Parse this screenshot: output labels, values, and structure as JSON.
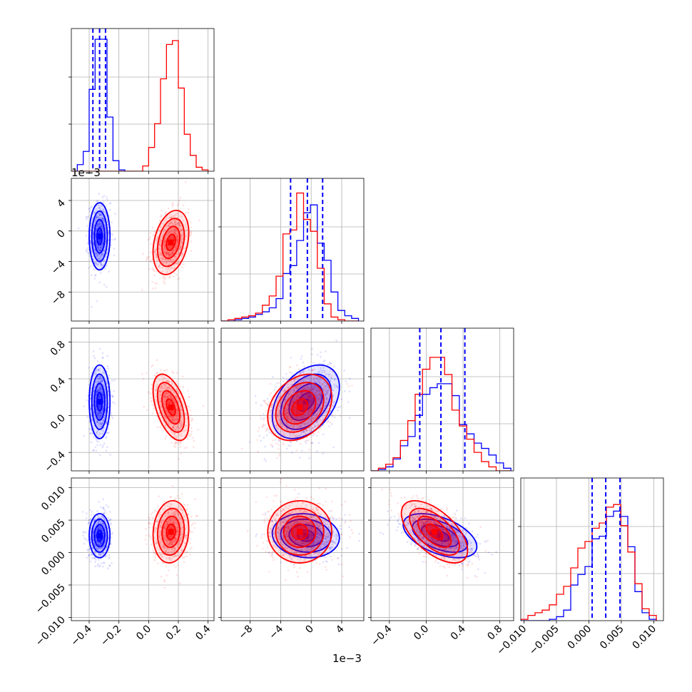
{
  "chart_data": {
    "type": "corner",
    "grid": true,
    "colors": {
      "series_a": "#0000ff",
      "series_b": "#ff0000"
    },
    "scale_labels": {
      "param2": "1e−3",
      "param2_axis": "1e−3"
    },
    "params": [
      {
        "key": "p1",
        "range": [
          -0.52,
          0.44
        ],
        "ticks": [
          -0.4,
          -0.2,
          0.0,
          0.2,
          0.4
        ],
        "tick_labels": [
          "−0.4",
          "−0.2",
          "0.0",
          "0.2",
          "0.4"
        ]
      },
      {
        "key": "p2",
        "range": [
          -0.0118,
          0.0069
        ],
        "ticks": [
          -0.008,
          -0.004,
          0.0,
          0.004
        ],
        "tick_labels": [
          "−8",
          "−4",
          "0",
          "4"
        ]
      },
      {
        "key": "p3",
        "range": [
          -0.6,
          0.95
        ],
        "ticks": [
          -0.4,
          0.0,
          0.4,
          0.8
        ],
        "tick_labels": [
          "−0.4",
          "0.0",
          "0.4",
          "0.8"
        ]
      },
      {
        "key": "p4",
        "range": [
          -0.0105,
          0.0115
        ],
        "ticks": [
          -0.01,
          -0.005,
          0.0,
          0.005,
          0.01
        ],
        "tick_labels": [
          "−0.010",
          "−0.005",
          "0.000",
          "0.005",
          "0.010"
        ]
      }
    ],
    "series": [
      {
        "key": "blue",
        "means": [
          -0.33,
          -0.0007,
          0.15,
          0.0026
        ],
        "stds": [
          0.035,
          0.0022,
          0.2,
          0.0017
        ],
        "corr": [
          [
            1,
            0,
            0,
            0
          ],
          [
            0,
            1,
            0.4,
            -0.1
          ],
          [
            0,
            0.4,
            1,
            -0.5
          ],
          [
            0,
            -0.1,
            -0.5,
            1
          ]
        ],
        "hist": [
          {
            "edges": [
              -0.52,
              -0.48,
              -0.44,
              -0.4,
              -0.36,
              -0.32,
              -0.28,
              -0.24,
              -0.2,
              -0.16
            ],
            "counts": [
              0,
              0.05,
              0.15,
              0.62,
              1.0,
              1.0,
              0.41,
              0.08,
              0.01
            ]
          },
          {
            "edges": [
              -0.0118,
              -0.0109,
              -0.01,
              -0.0091,
              -0.0082,
              -0.0073,
              -0.0064,
              -0.0055,
              -0.0046,
              -0.0037,
              -0.0028,
              -0.0019,
              -0.001,
              -0.0001,
              0.0008,
              0.0017,
              0.0026,
              0.0035,
              0.0044,
              0.0053,
              0.0062
            ],
            "counts": [
              0,
              0,
              0.01,
              0.02,
              0.03,
              0.05,
              0.07,
              0.1,
              0.17,
              0.36,
              0.42,
              0.61,
              0.82,
              0.88,
              0.59,
              0.46,
              0.22,
              0.08,
              0.04,
              0.02
            ]
          },
          {
            "edges": [
              -0.6,
              -0.52,
              -0.44,
              -0.36,
              -0.28,
              -0.2,
              -0.12,
              -0.04,
              0.04,
              0.12,
              0.2,
              0.28,
              0.36,
              0.44,
              0.52,
              0.6,
              0.68,
              0.76,
              0.84,
              0.92
            ],
            "counts": [
              0,
              0.01,
              0.03,
              0.09,
              0.19,
              0.26,
              0.42,
              0.58,
              0.63,
              0.66,
              0.66,
              0.57,
              0.35,
              0.28,
              0.21,
              0.17,
              0.12,
              0.06,
              0.02
            ]
          },
          {
            "edges": [
              -0.0105,
              -0.0094,
              -0.0083,
              -0.0072,
              -0.0061,
              -0.005,
              -0.0039,
              -0.0028,
              -0.0017,
              -0.0006,
              0.0005,
              0.0016,
              0.0027,
              0.0038,
              0.0049,
              0.006,
              0.0071,
              0.0082,
              0.0093,
              0.0104
            ],
            "counts": [
              0,
              0,
              0,
              0,
              0.01,
              0.03,
              0.08,
              0.27,
              0.35,
              0.41,
              0.62,
              0.64,
              0.79,
              0.83,
              0.79,
              0.56,
              0.22,
              0.06,
              0.01
            ]
          }
        ],
        "quantiles": [
          [
            -0.375,
            -0.33,
            -0.29
          ],
          [
            -0.0027,
            -0.0005,
            0.0015
          ],
          [
            -0.07,
            0.16,
            0.42
          ],
          [
            0.0005,
            0.0026,
            0.0048
          ]
        ]
      },
      {
        "key": "red",
        "means": [
          0.15,
          -0.0015,
          0.09,
          0.0032
        ],
        "stds": [
          0.06,
          0.0021,
          0.18,
          0.0024
        ],
        "corr": [
          [
            1,
            0.3,
            -0.5,
            0.1
          ],
          [
            0.3,
            1,
            0.3,
            0
          ],
          [
            -0.5,
            0.3,
            1,
            -0.6
          ],
          [
            0.1,
            0,
            -0.6,
            1
          ]
        ],
        "hist": [
          {
            "edges": [
              -0.52,
              -0.04,
              0.0,
              0.04,
              0.08,
              0.12,
              0.16,
              0.2,
              0.24,
              0.28,
              0.32,
              0.36,
              0.4
            ],
            "counts": [
              0,
              0.04,
              0.18,
              0.36,
              0.7,
              0.96,
              0.99,
              0.63,
              0.28,
              0.12,
              0.03,
              0.01
            ]
          },
          {
            "edges": [
              -0.0118,
              -0.0109,
              -0.01,
              -0.0091,
              -0.0082,
              -0.0073,
              -0.0064,
              -0.0055,
              -0.0046,
              -0.0037,
              -0.0028,
              -0.0019,
              -0.001,
              -0.0001,
              0.0008,
              0.0017,
              0.0026,
              0.0035,
              0.0044,
              0.0053,
              0.0062
            ],
            "counts": [
              0,
              0.01,
              0.02,
              0.03,
              0.04,
              0.06,
              0.12,
              0.19,
              0.34,
              0.66,
              0.69,
              0.97,
              0.77,
              0.68,
              0.4,
              0.13,
              0.03,
              0.01,
              0,
              0
            ]
          },
          {
            "edges": [
              -0.6,
              -0.52,
              -0.44,
              -0.36,
              -0.28,
              -0.2,
              -0.12,
              -0.04,
              0.04,
              0.12,
              0.2,
              0.28,
              0.36,
              0.44,
              0.52,
              0.6,
              0.68,
              0.76,
              0.84,
              0.92
            ],
            "counts": [
              0,
              0.02,
              0.05,
              0.1,
              0.23,
              0.38,
              0.58,
              0.77,
              0.86,
              0.86,
              0.73,
              0.46,
              0.34,
              0.24,
              0.14,
              0.07,
              0.03,
              0,
              0
            ]
          },
          {
            "edges": [
              -0.0105,
              -0.0094,
              -0.0083,
              -0.0072,
              -0.0061,
              -0.005,
              -0.0039,
              -0.0028,
              -0.0017,
              -0.0006,
              0.0005,
              0.0016,
              0.0027,
              0.0038,
              0.0049,
              0.006,
              0.0071,
              0.0082,
              0.0093,
              0.0104
            ],
            "counts": [
              0.01,
              0.04,
              0.06,
              0.08,
              0.12,
              0.2,
              0.26,
              0.4,
              0.55,
              0.6,
              0.7,
              0.74,
              0.86,
              0.88,
              0.72,
              0.52,
              0.28,
              0.09,
              0.04
            ]
          }
        ]
      }
    ]
  }
}
